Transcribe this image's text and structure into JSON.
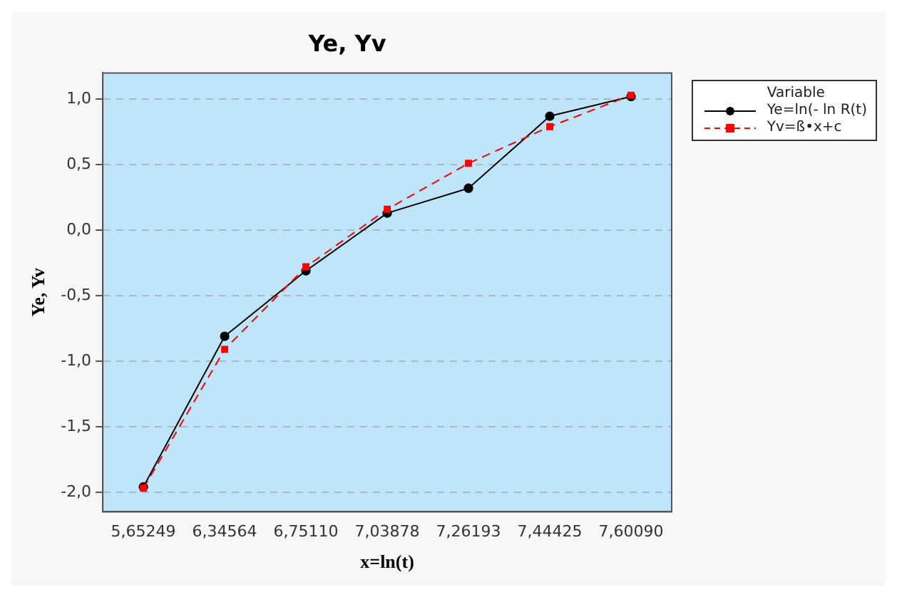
{
  "chart_data": {
    "type": "line",
    "title": "Ye, Yv",
    "xlabel": "x=ln(t)",
    "ylabel": "Ye, Yv",
    "legend_title": "Variable",
    "categories": [
      "5,65249",
      "6,34564",
      "6,75110",
      "7,03878",
      "7,26193",
      "7,44425",
      "7,60090"
    ],
    "series": [
      {
        "name": "Ye=ln(- ln R(t)",
        "color": "#000000",
        "marker": "circle",
        "line_style": "solid",
        "values": [
          -1.96,
          -0.81,
          -0.31,
          0.13,
          0.32,
          0.87,
          1.02
        ]
      },
      {
        "name": "Yv=ß•x+c",
        "color": "#ff0000",
        "marker": "square",
        "line_style": "dashed",
        "values": [
          -1.97,
          -0.91,
          -0.28,
          0.16,
          0.51,
          0.79,
          1.03
        ]
      }
    ],
    "ylim": [
      -2.15,
      1.2
    ],
    "yticks": [
      {
        "value": -2,
        "label": "-2,0"
      },
      {
        "value": -1.5,
        "label": "-1,5"
      },
      {
        "value": -1,
        "label": "-1,0"
      },
      {
        "value": -0.5,
        "label": "-0,5"
      },
      {
        "value": 0,
        "label": "0,0"
      },
      {
        "value": 0.5,
        "label": "0,5"
      },
      {
        "value": 1,
        "label": "1,0"
      }
    ],
    "grid": "y",
    "legend": "top right"
  }
}
